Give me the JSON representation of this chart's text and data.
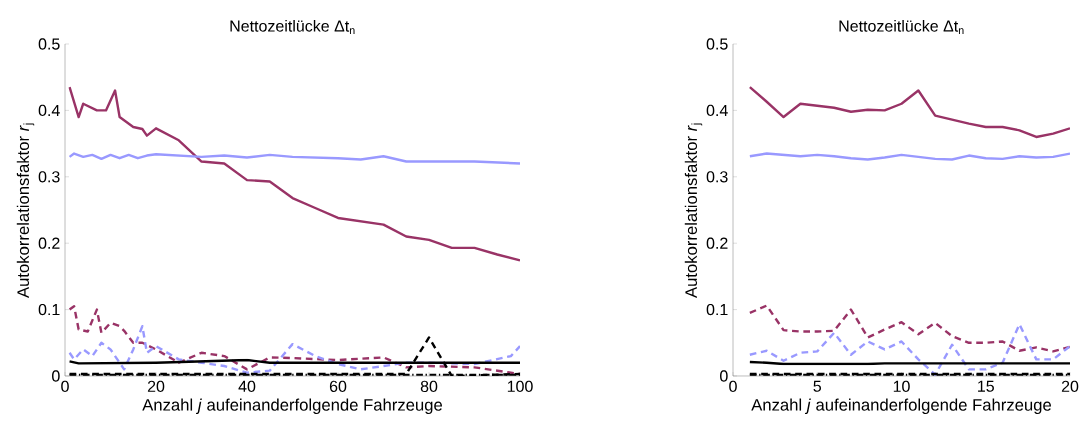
{
  "chart_data": [
    {
      "type": "line",
      "title": "Nettozeitlücke Δt$_{n}$",
      "xlabel": "Anzahl *j* aufeinanderfolgende Fahrzeuge",
      "ylabel": "Autokorrelationsfaktor *r*$_{j}$",
      "xlim": [
        0,
        100
      ],
      "ylim": [
        0,
        0.5
      ],
      "xticks": [
        0,
        20,
        40,
        60,
        80,
        100
      ],
      "yticks": [
        0,
        0.1,
        0.2,
        0.3,
        0.4,
        0.5
      ],
      "grid": false,
      "series": [
        {
          "color": "#993366",
          "line_style": "solid",
          "x": [
            1,
            3,
            4,
            7,
            9,
            11,
            12,
            15,
            17,
            18,
            20,
            25,
            30,
            35,
            40,
            45,
            50,
            55,
            60,
            65,
            70,
            75,
            80,
            85,
            90,
            95,
            100
          ],
          "values": [
            0.435,
            0.39,
            0.41,
            0.4,
            0.4,
            0.43,
            0.39,
            0.375,
            0.372,
            0.362,
            0.373,
            0.355,
            0.323,
            0.32,
            0.295,
            0.293,
            0.268,
            0.253,
            0.238,
            0.233,
            0.228,
            0.21,
            0.205,
            0.193,
            0.193,
            0.183,
            0.174
          ]
        },
        {
          "color": "#9999ff",
          "line_style": "solid",
          "x": [
            1,
            2,
            4,
            6,
            8,
            10,
            12,
            14,
            16,
            18,
            20,
            30,
            35,
            40,
            45,
            50,
            60,
            65,
            70,
            75,
            80,
            90,
            100
          ],
          "values": [
            0.33,
            0.335,
            0.33,
            0.333,
            0.327,
            0.333,
            0.328,
            0.333,
            0.328,
            0.332,
            0.334,
            0.33,
            0.332,
            0.329,
            0.333,
            0.33,
            0.328,
            0.326,
            0.331,
            0.323,
            0.323,
            0.323,
            0.32
          ]
        },
        {
          "color": "#993366",
          "line_style": "dashed",
          "x": [
            1,
            2,
            3,
            5,
            7,
            8,
            10,
            12,
            13,
            15,
            17,
            20,
            25,
            30,
            35,
            40,
            45,
            50,
            60,
            70,
            75,
            80,
            90,
            100
          ],
          "values": [
            0.1,
            0.105,
            0.07,
            0.067,
            0.1,
            0.065,
            0.08,
            0.075,
            0.068,
            0.05,
            0.05,
            0.04,
            0.02,
            0.035,
            0.03,
            0.01,
            0.028,
            0.027,
            0.024,
            0.028,
            0.013,
            0.015,
            0.013,
            0.003
          ]
        },
        {
          "color": "#9999ff",
          "line_style": "dashed",
          "x": [
            1,
            2,
            4,
            6,
            8,
            10,
            11,
            13,
            15,
            17,
            18,
            20,
            25,
            30,
            35,
            40,
            45,
            50,
            55,
            60,
            65,
            70,
            75,
            80,
            90,
            98,
            100
          ],
          "values": [
            0.035,
            0.025,
            0.04,
            0.03,
            0.05,
            0.04,
            0.03,
            0.01,
            0.04,
            0.075,
            0.035,
            0.045,
            0.025,
            0.02,
            0.015,
            0.005,
            0.008,
            0.048,
            0.03,
            0.018,
            0.01,
            0.015,
            0.02,
            0.02,
            0.018,
            0.03,
            0.045
          ]
        },
        {
          "color": "#000000",
          "line_style": "solid",
          "x": [
            1,
            3,
            20,
            40,
            45,
            100
          ],
          "values": [
            0.022,
            0.019,
            0.02,
            0.024,
            0.02,
            0.02
          ]
        },
        {
          "color": "#000000",
          "line_style": "dashed",
          "x": [
            1,
            40,
            75,
            80,
            85,
            100
          ],
          "values": [
            0.003,
            0.003,
            0.003,
            0.058,
            0.0,
            0.003
          ]
        },
        {
          "color": "#000000",
          "line_style": "dotted",
          "x": [
            1,
            50,
            100
          ],
          "values": [
            0.002,
            0.002,
            0.002
          ]
        }
      ]
    },
    {
      "type": "line",
      "title": "Nettozeitlücke Δt$_{n}$",
      "xlabel": "Anzahl *j* aufeinanderfolgende Fahrzeuge",
      "ylabel": "Autokorrelationsfaktor *r*$_{j}$",
      "xlim": [
        0,
        20
      ],
      "ylim": [
        0,
        0.5
      ],
      "xticks": [
        0,
        5,
        10,
        15,
        20
      ],
      "yticks": [
        0,
        0.1,
        0.2,
        0.3,
        0.4,
        0.5
      ],
      "grid": false,
      "x": [
        1,
        2,
        3,
        4,
        5,
        6,
        7,
        8,
        9,
        10,
        11,
        12,
        13,
        14,
        15,
        16,
        17,
        18,
        19,
        20
      ],
      "series": [
        {
          "color": "#993366",
          "line_style": "solid",
          "values": [
            0.435,
            0.413,
            0.39,
            0.41,
            0.407,
            0.404,
            0.398,
            0.401,
            0.4,
            0.41,
            0.43,
            0.392,
            0.386,
            0.38,
            0.375,
            0.375,
            0.37,
            0.36,
            0.365,
            0.373
          ]
        },
        {
          "color": "#9999ff",
          "line_style": "solid",
          "values": [
            0.331,
            0.335,
            0.333,
            0.331,
            0.333,
            0.331,
            0.328,
            0.326,
            0.329,
            0.333,
            0.33,
            0.327,
            0.326,
            0.332,
            0.328,
            0.327,
            0.331,
            0.329,
            0.33,
            0.335
          ]
        },
        {
          "color": "#993366",
          "line_style": "dashed",
          "values": [
            0.095,
            0.106,
            0.069,
            0.067,
            0.067,
            0.068,
            0.1,
            0.058,
            0.07,
            0.081,
            0.063,
            0.08,
            0.06,
            0.05,
            0.05,
            0.052,
            0.038,
            0.043,
            0.037,
            0.044
          ]
        },
        {
          "color": "#9999ff",
          "line_style": "dashed",
          "values": [
            0.032,
            0.038,
            0.023,
            0.035,
            0.037,
            0.065,
            0.032,
            0.052,
            0.04,
            0.052,
            0.025,
            0.002,
            0.047,
            0.01,
            0.01,
            0.02,
            0.078,
            0.025,
            0.025,
            0.045
          ]
        },
        {
          "color": "#000000",
          "line_style": "solid",
          "values": [
            0.021,
            0.02,
            0.018,
            0.018,
            0.018,
            0.018,
            0.018,
            0.018,
            0.019,
            0.019,
            0.019,
            0.019,
            0.019,
            0.019,
            0.019,
            0.019,
            0.019,
            0.019,
            0.019,
            0.019
          ]
        },
        {
          "color": "#000000",
          "line_style": "dashed",
          "values": [
            0.003,
            0.003,
            0.003,
            0.003,
            0.003,
            0.003,
            0.003,
            0.003,
            0.003,
            0.003,
            0.003,
            0.003,
            0.003,
            0.003,
            0.003,
            0.003,
            0.003,
            0.003,
            0.003,
            0.003
          ]
        },
        {
          "color": "#000000",
          "line_style": "dotted",
          "values": [
            0.002,
            0.002,
            0.002,
            0.002,
            0.002,
            0.002,
            0.002,
            0.002,
            0.002,
            0.002,
            0.002,
            0.002,
            0.002,
            0.002,
            0.002,
            0.002,
            0.002,
            0.002,
            0.002,
            0.002
          ]
        }
      ]
    }
  ]
}
